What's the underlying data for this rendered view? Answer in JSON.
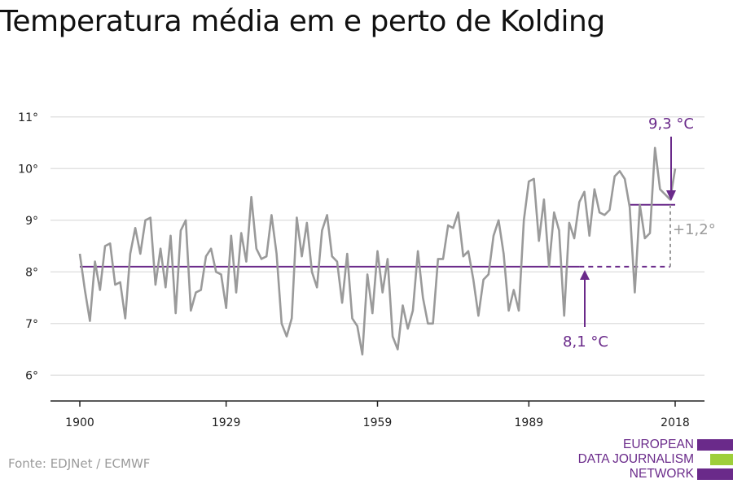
{
  "title": "Temperatura média em e perto de Kolding",
  "source": "Fonte: EDJNet / ECMWF",
  "logo": {
    "lines": [
      "EUROPEAN",
      "DATA JOURNALISM",
      "NETWORK"
    ],
    "colors": [
      "#6a2a8a",
      "#9ecf3a",
      "#6a2a8a"
    ]
  },
  "colors": {
    "series": "#9a9a9a",
    "accent": "#6a2a8a",
    "grid": "#dddddd",
    "axis": "#222222",
    "diff": "#9a9a9a"
  },
  "chart_data": {
    "type": "line",
    "title": "Temperatura média em e perto de Kolding",
    "xlabel": "",
    "ylabel": "",
    "xlim": [
      1900,
      2018
    ],
    "ylim": [
      5.5,
      11.5
    ],
    "x_ticks": [
      1900,
      1929,
      1959,
      1989,
      2018
    ],
    "y_ticks": [
      {
        "value": 6,
        "label": "6°"
      },
      {
        "value": 7,
        "label": "7°"
      },
      {
        "value": 8,
        "label": "8°"
      },
      {
        "value": 9,
        "label": "9°"
      },
      {
        "value": 10,
        "label": "10°"
      },
      {
        "value": 11,
        "label": "11°"
      }
    ],
    "grid": true,
    "series": [
      {
        "x_start": 1900,
        "values": [
          8.35,
          7.65,
          7.05,
          8.2,
          7.65,
          8.5,
          8.55,
          7.75,
          7.8,
          7.1,
          8.35,
          8.85,
          8.35,
          9.0,
          9.05,
          7.75,
          8.45,
          7.7,
          8.7,
          7.2,
          8.8,
          9.0,
          7.25,
          7.6,
          7.65,
          8.3,
          8.45,
          8.0,
          7.95,
          7.3,
          8.7,
          7.6,
          8.75,
          8.2,
          9.45,
          8.45,
          8.25,
          8.3,
          9.1,
          8.35,
          7.0,
          6.75,
          7.1,
          9.05,
          8.3,
          8.95,
          8.0,
          7.7,
          8.8,
          9.1,
          8.3,
          8.2,
          7.4,
          8.35,
          7.1,
          6.95,
          6.4,
          7.95,
          7.2,
          8.4,
          7.6,
          8.25,
          6.75,
          6.5,
          7.35,
          6.9,
          7.25,
          8.4,
          7.5,
          7.0,
          7.0,
          8.25,
          8.25,
          8.9,
          8.85,
          9.15,
          8.3,
          8.4,
          7.85,
          7.15,
          7.85,
          7.95,
          8.7,
          9.0,
          8.35,
          7.25,
          7.65,
          7.25,
          9.0,
          9.75,
          9.8,
          8.6,
          9.4,
          8.1,
          9.15,
          8.8,
          7.15,
          8.95,
          8.65,
          9.35,
          9.55,
          8.7,
          9.6,
          9.15,
          9.1,
          9.2,
          9.85,
          9.95,
          9.8,
          9.25,
          7.6,
          9.3,
          8.65,
          8.75,
          10.4,
          9.6,
          9.5,
          9.4,
          10.0
        ]
      }
    ],
    "reference_lines": [
      {
        "label": "8,1 °C",
        "value": 8.1,
        "from": 1900,
        "to": 1999
      },
      {
        "label": "9,3 °C",
        "value": 9.3,
        "from": 2009,
        "to": 2018
      }
    ],
    "difference": {
      "label": "+1,2°",
      "x": 2018,
      "from": 8.1,
      "to": 9.3
    }
  }
}
